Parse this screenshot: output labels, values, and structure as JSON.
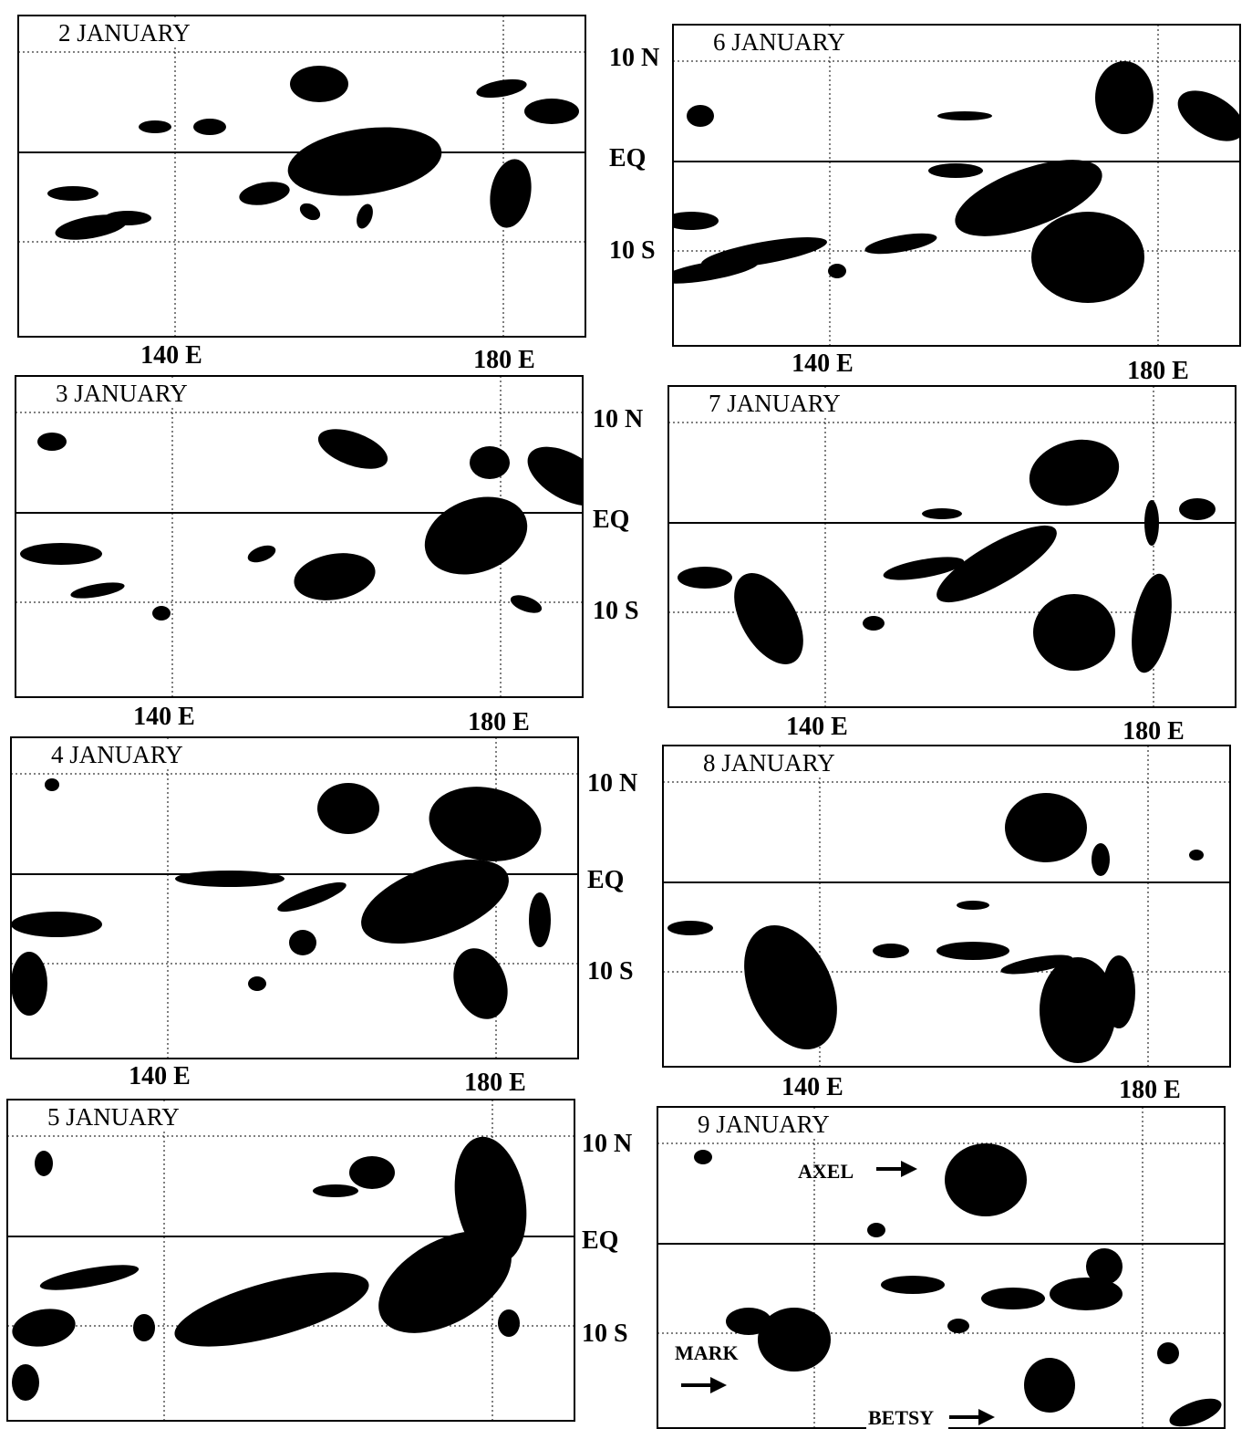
{
  "panels": [
    {
      "title": "2 JANUARY",
      "lat_labels": [
        "10 N",
        "EQ",
        "10 S"
      ],
      "lon_labels": [
        "140 E",
        "180 E"
      ]
    },
    {
      "title": "3 JANUARY",
      "lat_labels": [
        "10 N",
        "EQ",
        "10 S"
      ],
      "lon_labels": [
        "140 E",
        "180 E"
      ]
    },
    {
      "title": "4 JANUARY",
      "lat_labels": [
        "10 N",
        "EQ",
        "10 S"
      ],
      "lon_labels": [
        "140 E",
        "180 E"
      ]
    },
    {
      "title": "5 JANUARY",
      "lat_labels": [
        "10 N",
        "EQ",
        "10 S"
      ]
    },
    {
      "title": "6 JANUARY",
      "lon_labels": [
        "140 E",
        "180 E"
      ]
    },
    {
      "title": "7 JANUARY",
      "lon_labels": [
        "140 E",
        "180 E"
      ]
    },
    {
      "title": "8 JANUARY",
      "lon_labels": [
        "140 E",
        "180 E"
      ]
    },
    {
      "title": "9 JANUARY",
      "annotations": [
        "AXEL",
        "MARK",
        "BETSY"
      ]
    }
  ]
}
